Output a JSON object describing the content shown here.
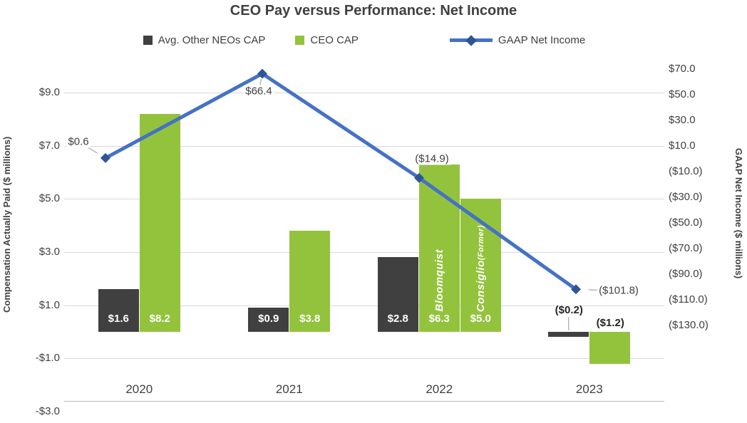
{
  "title": "CEO Pay versus Performance: Net Income",
  "colors": {
    "neo_bar": "#404040",
    "ceo_bar": "#93c33d",
    "line": "#4472c4",
    "marker": "#2f5597",
    "gridline": "#d9d9d9",
    "axis_line": "#bfbfbf",
    "leader": "#a6a6a6",
    "text": "#404040"
  },
  "legend": {
    "items": [
      {
        "label": "Avg. Other NEOs CAP",
        "swatch": "square",
        "color_key": "neo_bar"
      },
      {
        "label": "CEO CAP",
        "swatch": "square",
        "color_key": "ceo_bar"
      },
      {
        "label": "GAAP Net Income",
        "swatch": "line-diamond",
        "color_key": "line"
      }
    ]
  },
  "axes": {
    "left": {
      "title": "Compensation Actually Paid ($ millions)",
      "ticks": [
        {
          "label": "$9.0",
          "value": 9
        },
        {
          "label": "$7.0",
          "value": 7
        },
        {
          "label": "$5.0",
          "value": 5
        },
        {
          "label": "$3.0",
          "value": 3
        },
        {
          "label": "$1.0",
          "value": 1
        },
        {
          "label": "-$1.0",
          "value": -1
        },
        {
          "label": "-$3.0",
          "value": -3
        }
      ]
    },
    "right": {
      "title": "GAAP Net Income ($ millions)",
      "ticks": [
        {
          "label": "$70.0",
          "value": 70
        },
        {
          "label": "$50.0",
          "value": 50
        },
        {
          "label": "$30.0",
          "value": 30
        },
        {
          "label": "$10.0",
          "value": 10
        },
        {
          "label": "($10.0)",
          "value": -10
        },
        {
          "label": "($30.0)",
          "value": -30
        },
        {
          "label": "($50.0)",
          "value": -50
        },
        {
          "label": "($70.0)",
          "value": -70
        },
        {
          "label": "($90.0)",
          "value": -90
        },
        {
          "label": "($110.0)",
          "value": -110
        },
        {
          "label": "($130.0)",
          "value": -130
        }
      ]
    }
  },
  "chart_data": {
    "type": "combo-bar-line",
    "categories": [
      "2020",
      "2021",
      "2022",
      "2023"
    ],
    "left_axis": {
      "label": "Compensation Actually Paid ($ millions)",
      "range": [
        -3,
        9
      ],
      "tick_step": 2
    },
    "right_axis": {
      "label": "GAAP Net Income ($ millions)",
      "range": [
        -130,
        70
      ],
      "tick_step": 20
    },
    "grid": true,
    "legend_position": "top",
    "bar_groups": [
      {
        "category": "2020",
        "bars": [
          {
            "series": "Avg. Other NEOs CAP",
            "value": 1.6,
            "label": "$1.6",
            "color": "neo_bar",
            "label_pos": "inside"
          },
          {
            "series": "CEO CAP",
            "value": 8.2,
            "label": "$8.2",
            "color": "ceo_bar",
            "label_pos": "inside"
          }
        ]
      },
      {
        "category": "2021",
        "bars": [
          {
            "series": "Avg. Other NEOs CAP",
            "value": 0.9,
            "label": "$0.9",
            "color": "neo_bar",
            "label_pos": "inside"
          },
          {
            "series": "CEO CAP",
            "value": 3.8,
            "label": "$3.8",
            "color": "ceo_bar",
            "label_pos": "inside"
          }
        ]
      },
      {
        "category": "2022",
        "bars": [
          {
            "series": "Avg. Other NEOs CAP",
            "value": 2.8,
            "label": "$2.8",
            "color": "neo_bar",
            "label_pos": "inside"
          },
          {
            "series": "CEO CAP",
            "value": 6.3,
            "label": "$6.3",
            "color": "ceo_bar",
            "label_pos": "inside",
            "bar_name": "Bloomquist"
          },
          {
            "series": "CEO CAP",
            "value": 5.0,
            "label": "$5.0",
            "color": "ceo_bar",
            "label_pos": "inside",
            "bar_name": "Consiglio",
            "bar_name_suffix": "(Former)"
          }
        ]
      },
      {
        "category": "2023",
        "bars": [
          {
            "series": "Avg. Other NEOs CAP",
            "value": -0.2,
            "label": "($0.2)",
            "color": "neo_bar",
            "label_pos": "above",
            "leader": true
          },
          {
            "series": "CEO CAP",
            "value": -1.2,
            "label": "($1.2)",
            "color": "ceo_bar",
            "label_pos": "above"
          }
        ]
      }
    ],
    "line_series": {
      "name": "GAAP Net Income",
      "values": [
        0.6,
        66.4,
        -14.9,
        -101.8
      ],
      "labels": [
        "$0.6",
        "$66.4",
        "($14.9)",
        "($101.8)"
      ]
    }
  }
}
